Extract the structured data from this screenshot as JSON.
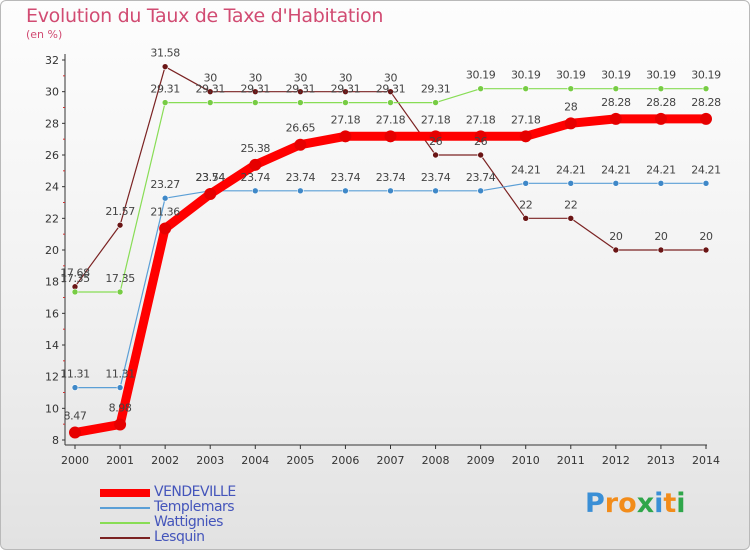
{
  "title": "Evolution du Taux de Taxe d'Habitation",
  "subtitle": "(en %)",
  "logo": {
    "text": "Proxiti",
    "letters": [
      "P",
      "r",
      "o",
      "x",
      "i",
      "t",
      "i"
    ],
    "colors": [
      "#3a8fd6",
      "#f28c1a",
      "#f28c1a",
      "#2fa64a",
      "#3a8fd6",
      "#f28c1a",
      "#2fa64a"
    ]
  },
  "chart_data": {
    "type": "line",
    "x": [
      "2000",
      "2001",
      "2002",
      "2003",
      "2004",
      "2005",
      "2006",
      "2007",
      "2008",
      "2009",
      "2010",
      "2011",
      "2012",
      "2013",
      "2014"
    ],
    "ylim": [
      8,
      32
    ],
    "yticks": [
      "8",
      "10",
      "12",
      "14",
      "16",
      "18",
      "20",
      "22",
      "24",
      "26",
      "28",
      "30",
      "32"
    ],
    "grid": false,
    "legend_position": "bottom-left",
    "series": [
      {
        "name": "Lesquin",
        "color": "#7b2323",
        "dot": "#6a1515",
        "width": 1.2,
        "dotR": 3,
        "values": [
          17.68,
          21.57,
          31.58,
          30,
          30,
          30,
          30,
          30,
          26,
          26,
          22,
          22,
          20,
          20,
          20
        ],
        "labels": [
          "17.68",
          "21.57",
          "31.58",
          "30",
          "30",
          "30",
          "30",
          "30",
          "26",
          "26",
          "22",
          "22",
          "20",
          "20",
          "20"
        ]
      },
      {
        "name": "Wattignies",
        "color": "#88dd55",
        "dot": "#77cc44",
        "width": 1.2,
        "dotR": 3,
        "values": [
          17.35,
          17.35,
          29.31,
          29.31,
          29.31,
          29.31,
          29.31,
          29.31,
          29.31,
          30.19,
          30.19,
          30.19,
          30.19,
          30.19,
          30.19
        ],
        "labels": [
          "17.35",
          "17.35",
          "29.31",
          "29.31",
          "29.31",
          "29.31",
          "29.31",
          "29.31",
          "29.31",
          "30.19",
          "30.19",
          "30.19",
          "30.19",
          "30.19",
          "30.19"
        ]
      },
      {
        "name": "Templemars",
        "color": "#5b9fd6",
        "dot": "#3f88c8",
        "width": 1.2,
        "dotR": 3,
        "values": [
          11.31,
          11.31,
          23.27,
          23.74,
          23.74,
          23.74,
          23.74,
          23.74,
          23.74,
          23.74,
          24.21,
          24.21,
          24.21,
          24.21,
          24.21
        ],
        "labels": [
          "11.31",
          "11.31",
          "23.27",
          "23.74",
          "23.74",
          "23.74",
          "23.74",
          "23.74",
          "23.74",
          "23.74",
          "24.21",
          "24.21",
          "24.21",
          "24.21",
          "24.21"
        ]
      },
      {
        "name": "VENDEVILLE",
        "color": "#ff0000",
        "dot": "#e60000",
        "width": 9,
        "dotR": 6,
        "values": [
          8.47,
          8.98,
          21.36,
          23.54,
          25.38,
          26.65,
          27.18,
          27.18,
          27.18,
          27.18,
          27.18,
          28,
          28.28,
          28.28,
          28.28
        ],
        "labels": [
          "8.47",
          "8.98",
          "21.36",
          "23.54",
          "25.38",
          "26.65",
          "27.18",
          "27.18",
          "27.18",
          "27.18",
          "27.18",
          "28",
          "28.28",
          "28.28",
          "28.28"
        ]
      }
    ],
    "legend_order": [
      "VENDEVILLE",
      "Templemars",
      "Wattignies",
      "Lesquin"
    ]
  }
}
